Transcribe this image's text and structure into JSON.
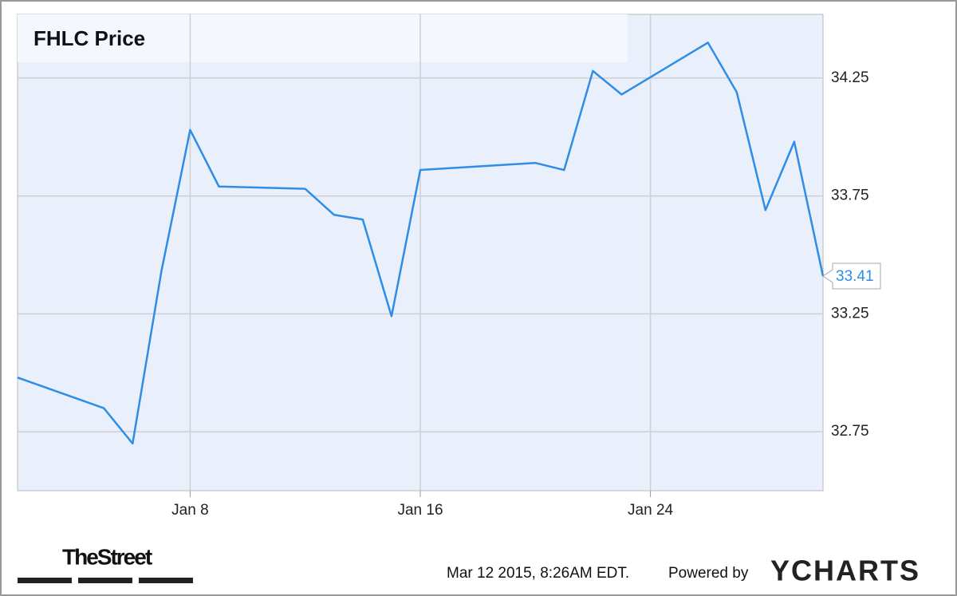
{
  "chart_data": {
    "type": "line",
    "title": "FHLC Price",
    "x": [
      2,
      5,
      6,
      7,
      8,
      9,
      12,
      13,
      14,
      15,
      16,
      20,
      21,
      22,
      23,
      26,
      27,
      28,
      29,
      30
    ],
    "series": [
      {
        "name": "FHLC",
        "color": "#2e8de6",
        "values": [
          32.98,
          32.85,
          32.7,
          33.43,
          34.03,
          33.79,
          33.78,
          33.67,
          33.65,
          33.24,
          33.86,
          33.89,
          33.86,
          34.28,
          34.18,
          34.4,
          34.19,
          33.69,
          33.98,
          33.41
        ]
      }
    ],
    "xlim": [
      2,
      30
    ],
    "xticks": [
      {
        "value": 8,
        "label": "Jan 8"
      },
      {
        "value": 16,
        "label": "Jan 16"
      },
      {
        "value": 24,
        "label": "Jan 24"
      }
    ],
    "ylim": [
      32.5,
      34.52
    ],
    "yticks": [
      32.75,
      33.25,
      33.75,
      34.25
    ],
    "grid": true
  },
  "footer": {
    "publisher": "TheStreet",
    "timestamp": "Mar 12 2015, 8:26AM EDT.",
    "powered_by": "Powered by",
    "brand": "YCHARTS"
  }
}
